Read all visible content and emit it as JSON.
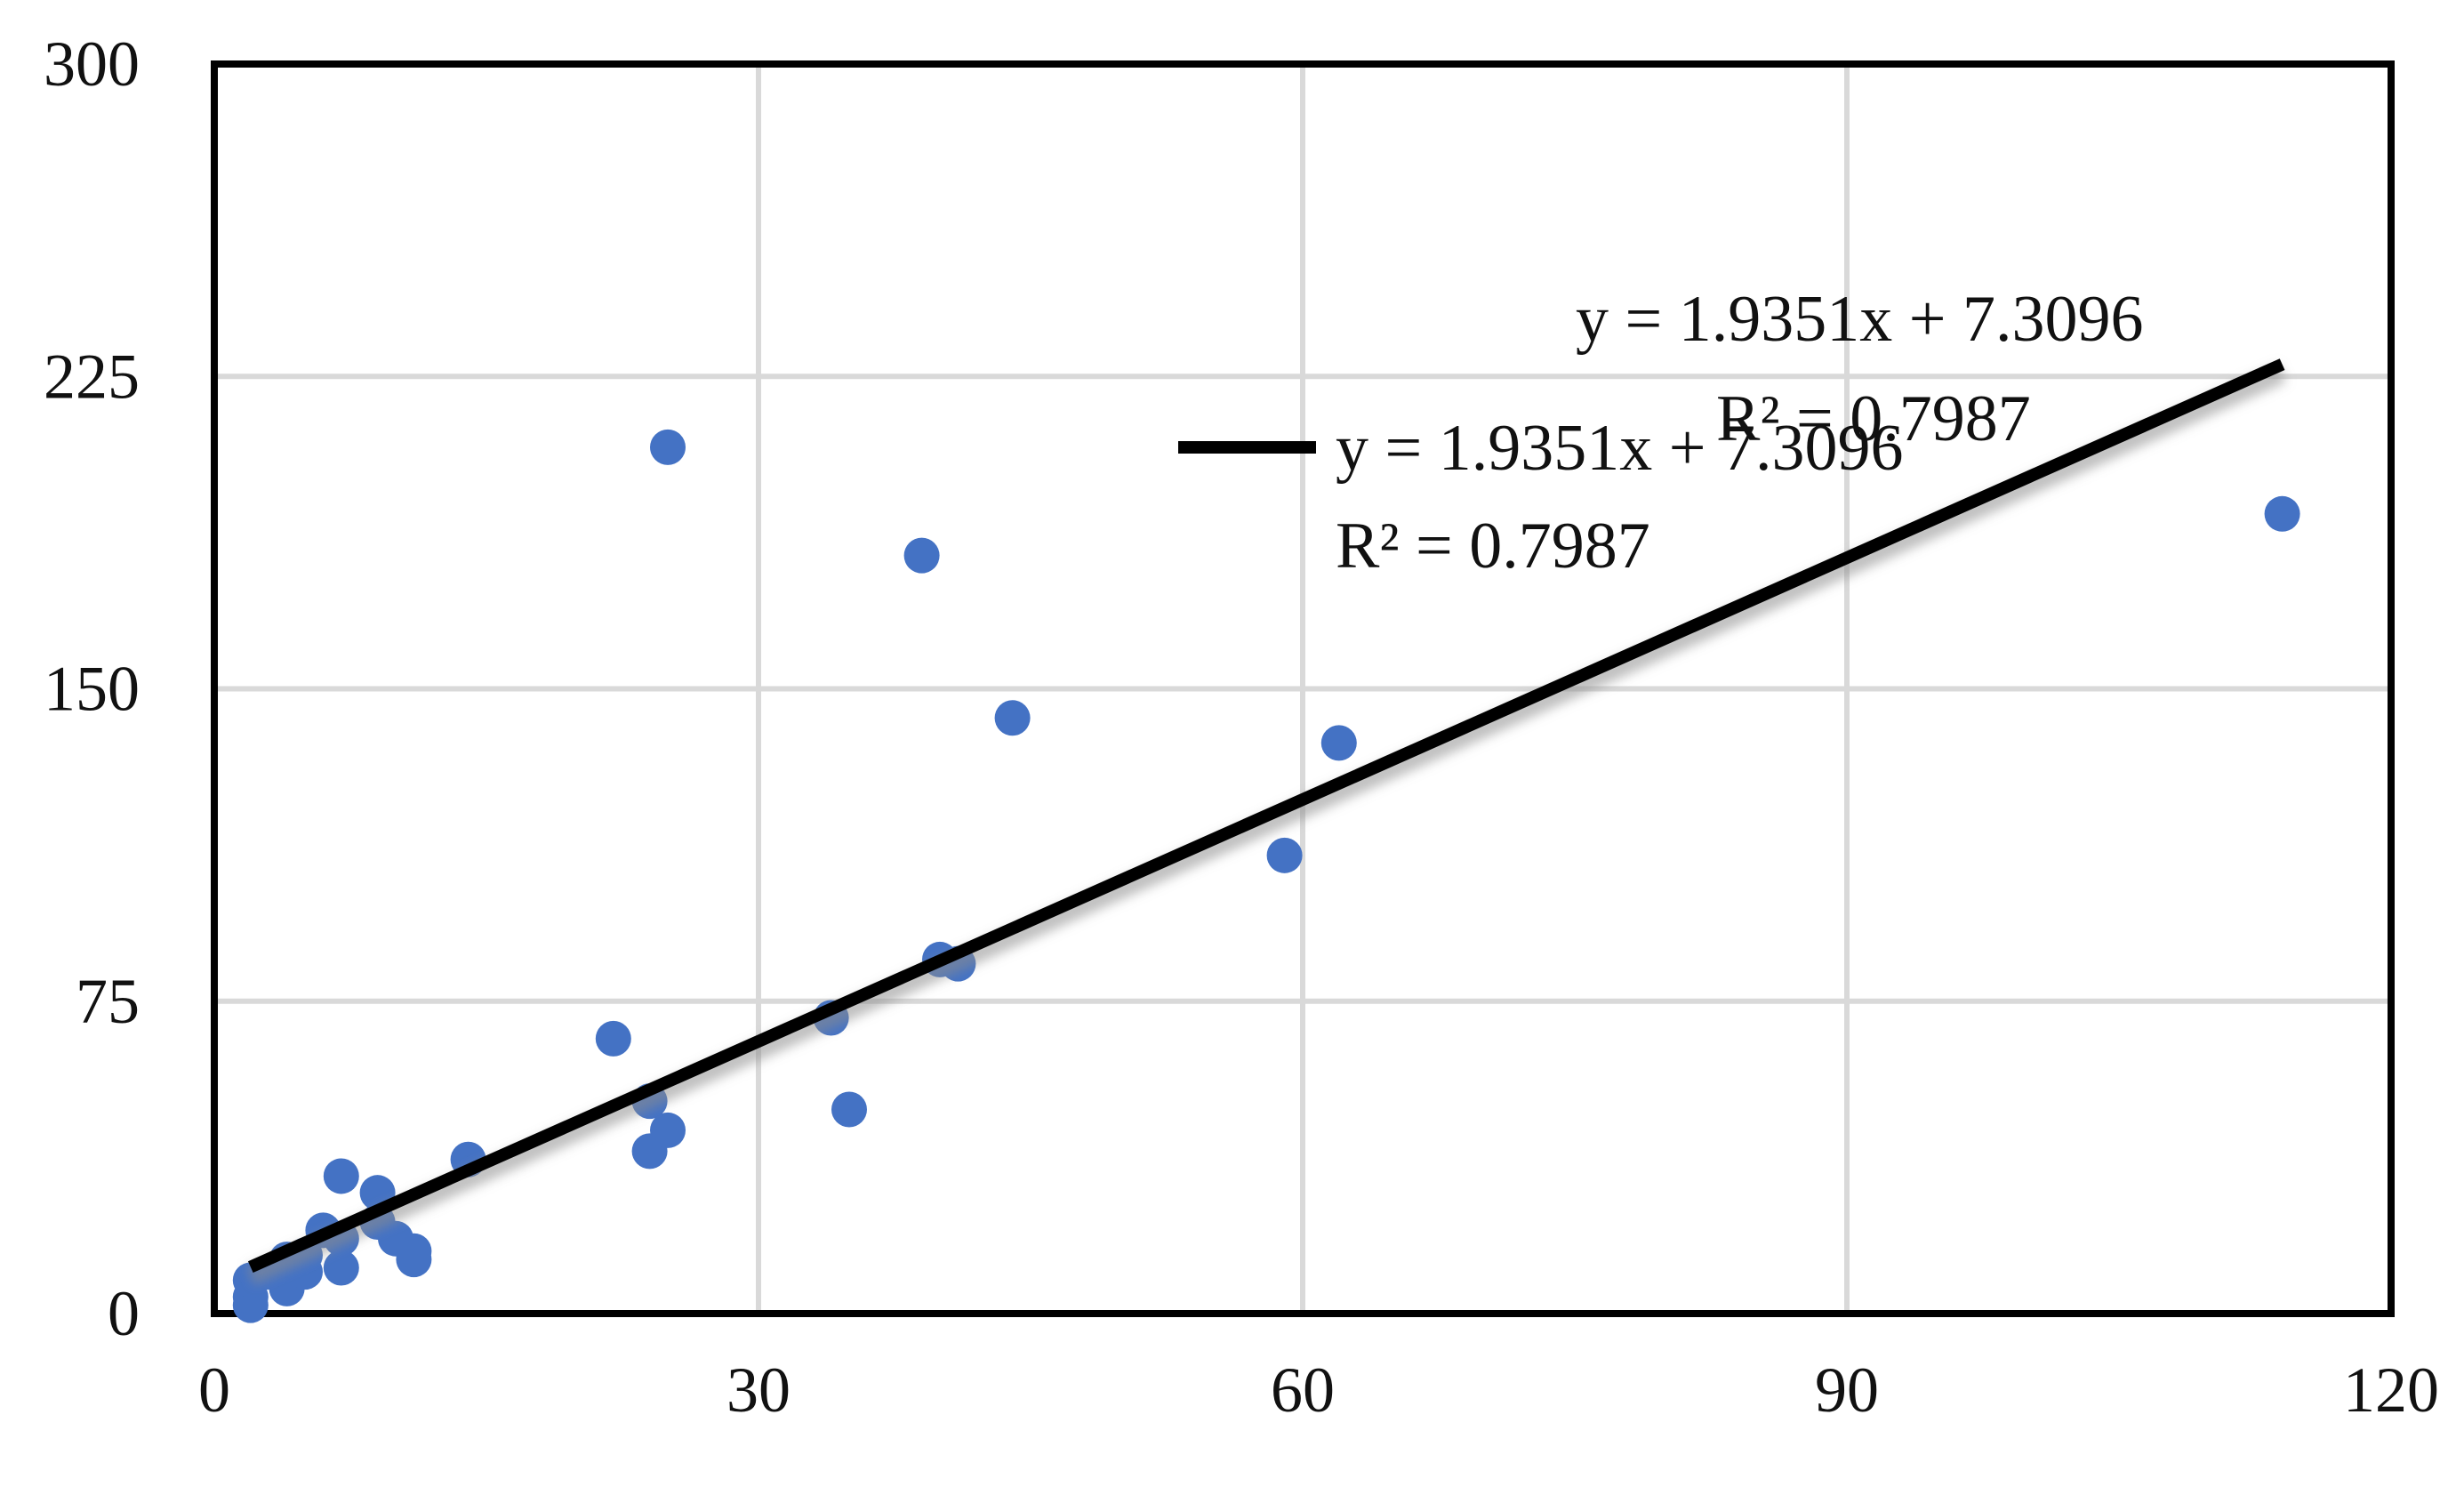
{
  "chart_data": {
    "type": "scatter",
    "title": "",
    "xlabel": "",
    "ylabel": "",
    "xlim": [
      0,
      120
    ],
    "ylim": [
      0,
      300
    ],
    "x_ticks": [
      0,
      30,
      60,
      90,
      120
    ],
    "y_ticks": [
      0,
      75,
      150,
      225,
      300
    ],
    "x_tick_labels": [
      "0",
      "30",
      "60",
      "90",
      "120"
    ],
    "y_tick_labels": [
      "0",
      "75",
      "150",
      "225",
      "300"
    ],
    "grid": true,
    "series": [
      {
        "color": "#4472c4",
        "points": [
          {
            "x": 2,
            "y": 2
          },
          {
            "x": 2,
            "y": 4
          },
          {
            "x": 2,
            "y": 8
          },
          {
            "x": 3,
            "y": 10
          },
          {
            "x": 4,
            "y": 6
          },
          {
            "x": 4,
            "y": 13
          },
          {
            "x": 5,
            "y": 10
          },
          {
            "x": 5,
            "y": 14
          },
          {
            "x": 6,
            "y": 20
          },
          {
            "x": 7,
            "y": 11
          },
          {
            "x": 7,
            "y": 18
          },
          {
            "x": 7,
            "y": 33
          },
          {
            "x": 9,
            "y": 22
          },
          {
            "x": 9,
            "y": 29
          },
          {
            "x": 10,
            "y": 18
          },
          {
            "x": 11,
            "y": 13
          },
          {
            "x": 11,
            "y": 15
          },
          {
            "x": 14,
            "y": 37
          },
          {
            "x": 22,
            "y": 66
          },
          {
            "x": 24,
            "y": 39
          },
          {
            "x": 24,
            "y": 51
          },
          {
            "x": 25,
            "y": 44
          },
          {
            "x": 25,
            "y": 208
          },
          {
            "x": 34,
            "y": 71
          },
          {
            "x": 35,
            "y": 49
          },
          {
            "x": 39,
            "y": 182
          },
          {
            "x": 40,
            "y": 85
          },
          {
            "x": 41,
            "y": 84
          },
          {
            "x": 44,
            "y": 143
          },
          {
            "x": 59,
            "y": 110
          },
          {
            "x": 62,
            "y": 137
          },
          {
            "x": 114,
            "y": 192
          }
        ]
      }
    ],
    "trendline": {
      "slope": 1.9351,
      "intercept": 7.3096,
      "x_start": 2,
      "x_end": 114,
      "color": "#000000",
      "equation": "y = 1.9351x + 7.3096",
      "r_squared": "R² = 0.7987"
    },
    "legend": {
      "placement": "top-center",
      "equation": "y = 1.9351x + 7.3096",
      "r_squared": "R² = 0.7987"
    }
  }
}
